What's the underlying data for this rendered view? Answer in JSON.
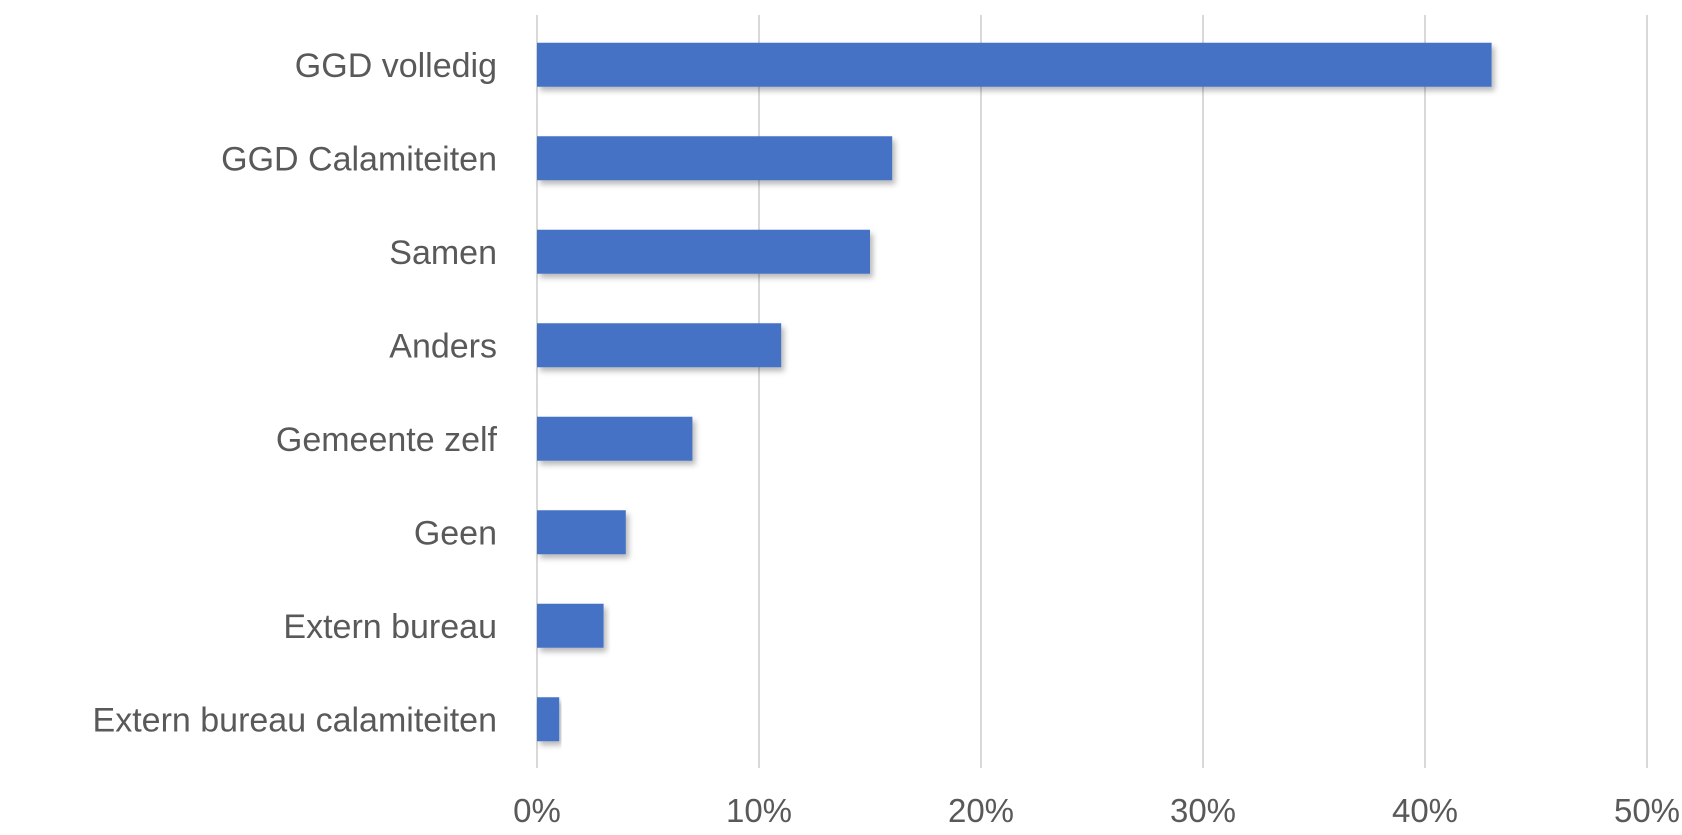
{
  "chart_data": {
    "type": "bar",
    "orientation": "horizontal",
    "categories": [
      "GGD volledig",
      "GGD Calamiteiten",
      "Samen",
      "Anders",
      "Gemeente zelf",
      "Geen",
      "Extern bureau",
      "Extern bureau calamiteiten"
    ],
    "values": [
      43,
      16,
      15,
      11,
      7,
      4,
      3,
      1
    ],
    "xlim": [
      0,
      50
    ],
    "xticks": [
      0,
      10,
      20,
      30,
      40,
      50
    ],
    "tick_labels": [
      "0%",
      "10%",
      "20%",
      "30%",
      "40%",
      "50%"
    ],
    "value_unit": "%",
    "grid": true,
    "legend": "none",
    "colors": {
      "bar": "#4472c4",
      "grid": "#d9d9d9",
      "text": "#595959"
    }
  }
}
